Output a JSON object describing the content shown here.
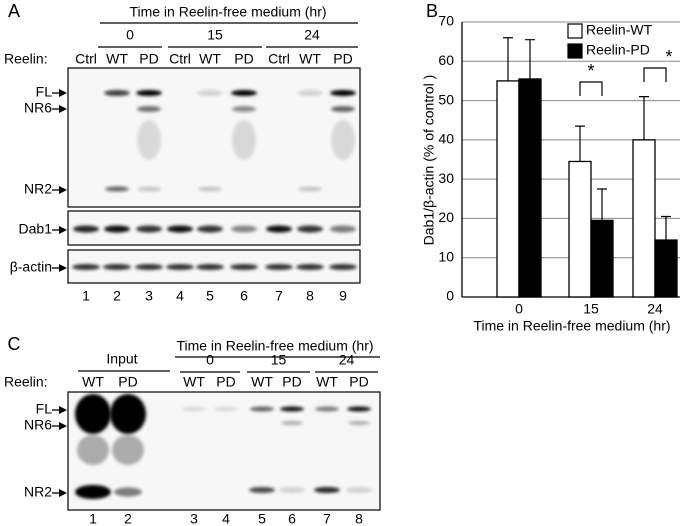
{
  "panel_a": {
    "label": "A",
    "title": "Time in Reelin-free medium (hr)",
    "times": [
      "0",
      "15",
      "24"
    ],
    "row_label": "Reelin:",
    "lanes": [
      "Ctrl",
      "WT",
      "PD",
      "Ctrl",
      "WT",
      "PD",
      "Ctrl",
      "WT",
      "PD"
    ],
    "band_labels": [
      "FL",
      "NR6",
      "NR2",
      "Dab1",
      "β-actin"
    ],
    "lane_numbers": [
      "1",
      "2",
      "3",
      "4",
      "5",
      "6",
      "7",
      "8",
      "9"
    ]
  },
  "chart_data": {
    "type": "bar",
    "panel_label": "B",
    "ylabel": "Dab1/β-actin (% of control )",
    "xlabel": "Time in Reelin-free medium (hr)",
    "categories": [
      "0",
      "15",
      "24"
    ],
    "series": [
      {
        "name": "Reelin-WT",
        "color": "#ffffff",
        "values": [
          55,
          34.5,
          40
        ],
        "errors": [
          11,
          9,
          11
        ]
      },
      {
        "name": "Reelin-PD",
        "color": "#000000",
        "values": [
          55.5,
          19.5,
          14.5
        ],
        "errors": [
          10,
          8,
          6
        ]
      }
    ],
    "ylim": [
      0,
      70
    ],
    "yticks": [
      0,
      10,
      20,
      30,
      40,
      50,
      60,
      70
    ],
    "grid": true,
    "legend": "top-right",
    "annotations": [
      "*",
      "*"
    ]
  },
  "panel_c": {
    "label": "C",
    "input_label": "Input",
    "title": "Time in Reelin-free medium (hr)",
    "times": [
      "0",
      "15",
      "24"
    ],
    "row_label": "Reelin:",
    "lanes": [
      "WT",
      "PD",
      "WT",
      "PD",
      "WT",
      "PD",
      "WT",
      "PD"
    ],
    "band_labels": [
      "FL",
      "NR6",
      "NR2"
    ],
    "lane_numbers": [
      "1",
      "2",
      "3",
      "4",
      "5",
      "6",
      "7",
      "8"
    ]
  }
}
